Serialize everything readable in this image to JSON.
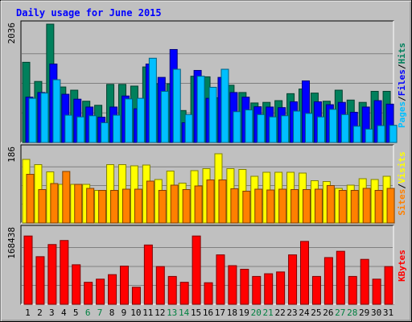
{
  "chart_data": [
    {
      "type": "bar",
      "title": "Daily usage for June 2015",
      "panel": "hits-files-pages",
      "categories": [
        "1",
        "2",
        "3",
        "4",
        "5",
        "6",
        "7",
        "8",
        "9",
        "10",
        "11",
        "12",
        "13",
        "14",
        "15",
        "16",
        "17",
        "18",
        "19",
        "20",
        "21",
        "22",
        "23",
        "24",
        "25",
        "26",
        "27",
        "28",
        "29",
        "30",
        "31"
      ],
      "ylabel_max": "2036",
      "ylim": [
        0,
        2036
      ],
      "series": [
        {
          "name": "Hits",
          "color": "#00805C",
          "values": [
            1380,
            1050,
            2036,
            955,
            900,
            710,
            640,
            1000,
            1000,
            970,
            1300,
            1010,
            1010,
            550,
            1140,
            1130,
            770,
            985,
            860,
            680,
            690,
            720,
            840,
            920,
            850,
            710,
            900,
            730,
            690,
            880,
            880
          ]
        },
        {
          "name": "Files",
          "color": "#0000FF",
          "values": [
            780,
            860,
            1350,
            830,
            745,
            610,
            435,
            610,
            800,
            580,
            1350,
            1120,
            1600,
            340,
            1240,
            760,
            1120,
            860,
            780,
            615,
            610,
            600,
            700,
            1060,
            700,
            650,
            690,
            520,
            610,
            720,
            660
          ]
        },
        {
          "name": "Pages",
          "color": "#00BFFF",
          "values": [
            760,
            850,
            1080,
            470,
            440,
            460,
            340,
            470,
            750,
            760,
            1450,
            880,
            1260,
            480,
            1140,
            950,
            1260,
            530,
            560,
            480,
            440,
            460,
            540,
            500,
            440,
            570,
            480,
            280,
            230,
            290,
            295
          ]
        }
      ],
      "legend": [
        "Pages",
        "/",
        "Files",
        "/",
        "Hits"
      ]
    },
    {
      "type": "bar",
      "panel": "visits-sites",
      "categories": [
        "1",
        "2",
        "3",
        "4",
        "5",
        "6",
        "7",
        "8",
        "9",
        "10",
        "11",
        "12",
        "13",
        "14",
        "15",
        "16",
        "17",
        "18",
        "19",
        "20",
        "21",
        "22",
        "23",
        "24",
        "25",
        "26",
        "27",
        "28",
        "29",
        "30",
        "31"
      ],
      "ylabel_max": "186",
      "ylim": [
        0,
        186
      ],
      "series": [
        {
          "name": "Visits",
          "color": "#FFFF00",
          "values": [
            158,
            145,
            127,
            96,
            96,
            96,
            81,
            145,
            145,
            142,
            144,
            108,
            129,
            99,
            130,
            135,
            172,
            135,
            133,
            116,
            126,
            126,
            126,
            124,
            105,
            103,
            86,
            94,
            110,
            108,
            116
          ]
        },
        {
          "name": "Sites",
          "color": "#FF8000",
          "values": [
            121,
            83,
            98,
            128,
            96,
            86,
            81,
            81,
            84,
            84,
            104,
            81,
            94,
            83,
            92,
            107,
            107,
            85,
            79,
            84,
            82,
            84,
            83,
            83,
            84,
            93,
            81,
            81,
            86,
            81,
            86
          ]
        }
      ],
      "legend": [
        "Sites",
        "/",
        "Visits"
      ]
    },
    {
      "type": "bar",
      "panel": "kbytes",
      "categories": [
        "1",
        "2",
        "3",
        "4",
        "5",
        "6",
        "7",
        "8",
        "9",
        "10",
        "11",
        "12",
        "13",
        "14",
        "15",
        "16",
        "17",
        "18",
        "19",
        "20",
        "21",
        "22",
        "23",
        "24",
        "25",
        "26",
        "27",
        "28",
        "29",
        "30",
        "31"
      ],
      "ylabel_max": "168438",
      "ylim": [
        0,
        168438
      ],
      "series": [
        {
          "name": "KBytes",
          "color": "#FF0000",
          "values": [
            152000,
            106000,
            133000,
            142000,
            88000,
            49000,
            56000,
            66000,
            85000,
            38000,
            132000,
            84000,
            62000,
            49000,
            152000,
            48000,
            110000,
            86000,
            78000,
            62000,
            68000,
            72000,
            110000,
            140000,
            62000,
            104000,
            118000,
            62000,
            100000,
            56000,
            84000
          ]
        }
      ],
      "legend": [
        "KBytes"
      ]
    }
  ],
  "colors": {
    "frame_bg": "#C0C0C0",
    "title_color": "#0000FF",
    "axis_text": "#000000",
    "weekend_day_color": "#008040"
  },
  "weekend_days": [
    "6",
    "7",
    "13",
    "14",
    "20",
    "21",
    "27",
    "28"
  ]
}
